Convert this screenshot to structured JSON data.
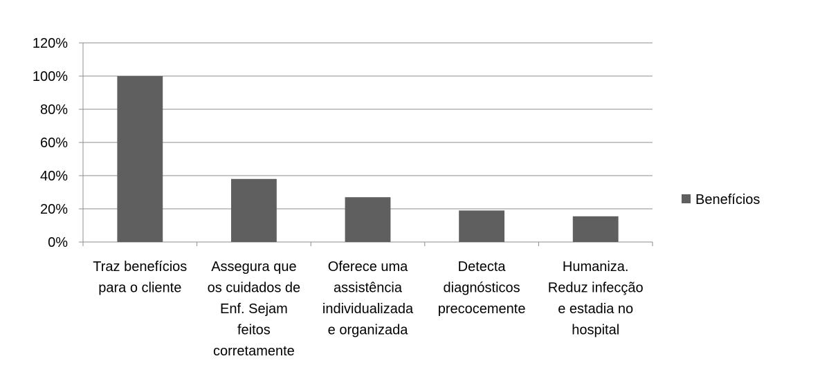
{
  "chart_data": {
    "type": "bar",
    "title": "",
    "xlabel": "",
    "ylabel": "",
    "categories": [
      [
        "Traz benefícios",
        "para o cliente"
      ],
      [
        "Assegura que",
        "os cuidados de",
        "Enf. Sejam",
        "feitos",
        "corretamente"
      ],
      [
        "Oferece uma",
        "assistência",
        "individualizada",
        "e organizada"
      ],
      [
        "Detecta",
        "diagnósticos",
        "precocemente"
      ],
      [
        "Humaniza.",
        "Reduz infecção",
        "e estadia no",
        "hospital"
      ]
    ],
    "series": [
      {
        "name": "Benefícios",
        "values": [
          1.0,
          0.38,
          0.27,
          0.19,
          0.155
        ],
        "color": "#5f5f5f"
      }
    ],
    "ylim": [
      0,
      1.2
    ],
    "yticks": [
      0,
      0.2,
      0.4,
      0.6,
      0.8,
      1.0,
      1.2
    ],
    "ytick_labels": [
      "0%",
      "20%",
      "40%",
      "60%",
      "80%",
      "100%",
      "120%"
    ],
    "grid": true,
    "legend_position": "right"
  }
}
